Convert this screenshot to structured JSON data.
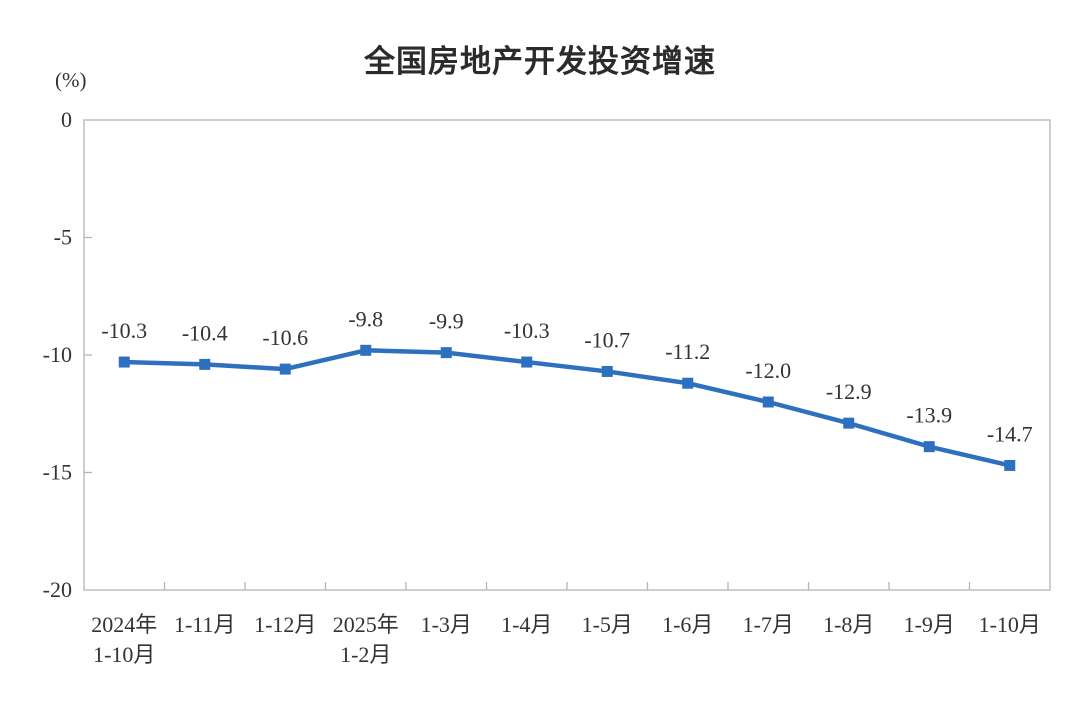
{
  "chart_data": {
    "type": "line",
    "title": "全国房地产开发投资增速",
    "unit_label": "(%)",
    "categories": [
      "2024年\n1-10月",
      "1-11月",
      "1-12月",
      "2025年\n1-2月",
      "1-3月",
      "1-4月",
      "1-5月",
      "1-6月",
      "1-7月",
      "1-8月",
      "1-9月",
      "1-10月"
    ],
    "values": [
      -10.3,
      -10.4,
      -10.6,
      -9.8,
      -9.9,
      -10.3,
      -10.7,
      -11.2,
      -12.0,
      -12.9,
      -13.9,
      -14.7
    ],
    "point_labels": [
      "-10.3",
      "-10.4",
      "-10.6",
      "-9.8",
      "-9.9",
      "-10.3",
      "-10.7",
      "-11.2",
      "-12.0",
      "-12.9",
      "-13.9",
      "-14.7"
    ],
    "y_ticks": [
      0,
      -5,
      -10,
      -15,
      -20
    ],
    "y_tick_labels": [
      "0",
      "-5",
      "-10",
      "-15",
      "-20"
    ],
    "ylim": [
      -20,
      0
    ],
    "grid": false,
    "legend": "none",
    "colors": {
      "line": "#2e70c0",
      "marker": "#2e70c0",
      "axis": "#c9c9c9",
      "tick": "#b5b5b5",
      "text": "#333333",
      "title": "#2b2b2b"
    }
  }
}
